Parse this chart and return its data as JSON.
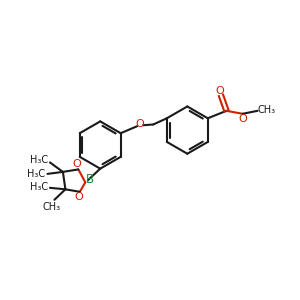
{
  "bg_color": "#ffffff",
  "bond_color": "#1a1a1a",
  "oxygen_color": "#cc2200",
  "boron_color": "#228833",
  "figsize": [
    3.0,
    3.0
  ],
  "dpi": 100,
  "xlim": [
    0,
    12
  ],
  "ylim": [
    0,
    12
  ]
}
